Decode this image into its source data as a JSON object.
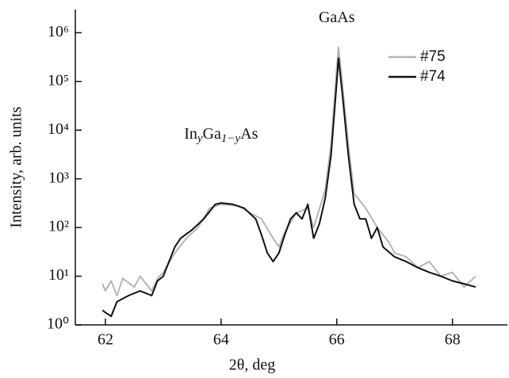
{
  "chart_data": {
    "type": "line",
    "x_label": "2θ, deg",
    "y_label": "Intensity, arb. units",
    "log_y": true,
    "xlim": [
      61.48,
      68.95
    ],
    "ylim": [
      1,
      3000000
    ],
    "xticks": [
      62,
      64,
      66,
      68
    ],
    "yticks": [
      {
        "value": 1,
        "label": "10⁰"
      },
      {
        "value": 10,
        "label": "10¹"
      },
      {
        "value": 100,
        "label": "10²"
      },
      {
        "value": 1000,
        "label": "10³"
      },
      {
        "value": 10000,
        "label": "10⁴"
      },
      {
        "value": 100000,
        "label": "10⁵"
      },
      {
        "value": 1000000,
        "label": "10⁶"
      }
    ],
    "legend": "upper right",
    "annotations": [
      {
        "parts": [
          "GaAs"
        ],
        "x": 66,
        "y": 2000000
      },
      {
        "parts": [
          "In",
          "y",
          "Ga",
          "1−y",
          "As"
        ],
        "x": 64,
        "y": 8000
      }
    ],
    "series": [
      {
        "name": "#75",
        "color": "#b5b5b5",
        "x": [
          61.95,
          62.0,
          62.1,
          62.2,
          62.3,
          62.5,
          62.6,
          62.8,
          62.9,
          63.0,
          63.2,
          63.4,
          63.6,
          63.8,
          64.0,
          64.3,
          64.5,
          64.7,
          64.9,
          65.0,
          65.1,
          65.3,
          65.5,
          65.6,
          65.8,
          65.9,
          66.0,
          66.03,
          66.1,
          66.2,
          66.3,
          66.5,
          66.7,
          66.9,
          67.0,
          67.2,
          67.4,
          67.6,
          67.8,
          68.0,
          68.2,
          68.4
        ],
        "values": [
          7,
          5,
          8,
          4,
          9,
          6,
          10,
          5,
          9,
          12,
          30,
          60,
          100,
          250,
          300,
          280,
          200,
          150,
          60,
          40,
          80,
          200,
          250,
          100,
          600,
          5000,
          200000,
          500000,
          80000,
          5000,
          500,
          250,
          100,
          50,
          30,
          25,
          15,
          20,
          10,
          12,
          6,
          10
        ]
      },
      {
        "name": "#74",
        "color": "#111111",
        "x": [
          61.95,
          62.0,
          62.1,
          62.2,
          62.4,
          62.6,
          62.8,
          62.9,
          63.0,
          63.1,
          63.2,
          63.3,
          63.5,
          63.7,
          63.9,
          64.0,
          64.2,
          64.4,
          64.6,
          64.7,
          64.8,
          64.9,
          65.0,
          65.1,
          65.2,
          65.3,
          65.4,
          65.5,
          65.6,
          65.7,
          65.8,
          65.9,
          66.0,
          66.03,
          66.1,
          66.2,
          66.3,
          66.4,
          66.5,
          66.6,
          66.7,
          66.8,
          67.0,
          67.2,
          67.4,
          67.6,
          67.8,
          68.0,
          68.2,
          68.4
        ],
        "values": [
          2,
          1.8,
          1.5,
          3,
          4,
          5,
          4,
          8,
          10,
          20,
          40,
          60,
          90,
          150,
          300,
          320,
          300,
          250,
          150,
          70,
          30,
          20,
          30,
          70,
          150,
          200,
          150,
          300,
          60,
          120,
          400,
          3000,
          100000,
          300000,
          50000,
          3000,
          300,
          150,
          150,
          60,
          100,
          40,
          25,
          20,
          15,
          12,
          10,
          8,
          7,
          6
        ]
      }
    ]
  }
}
